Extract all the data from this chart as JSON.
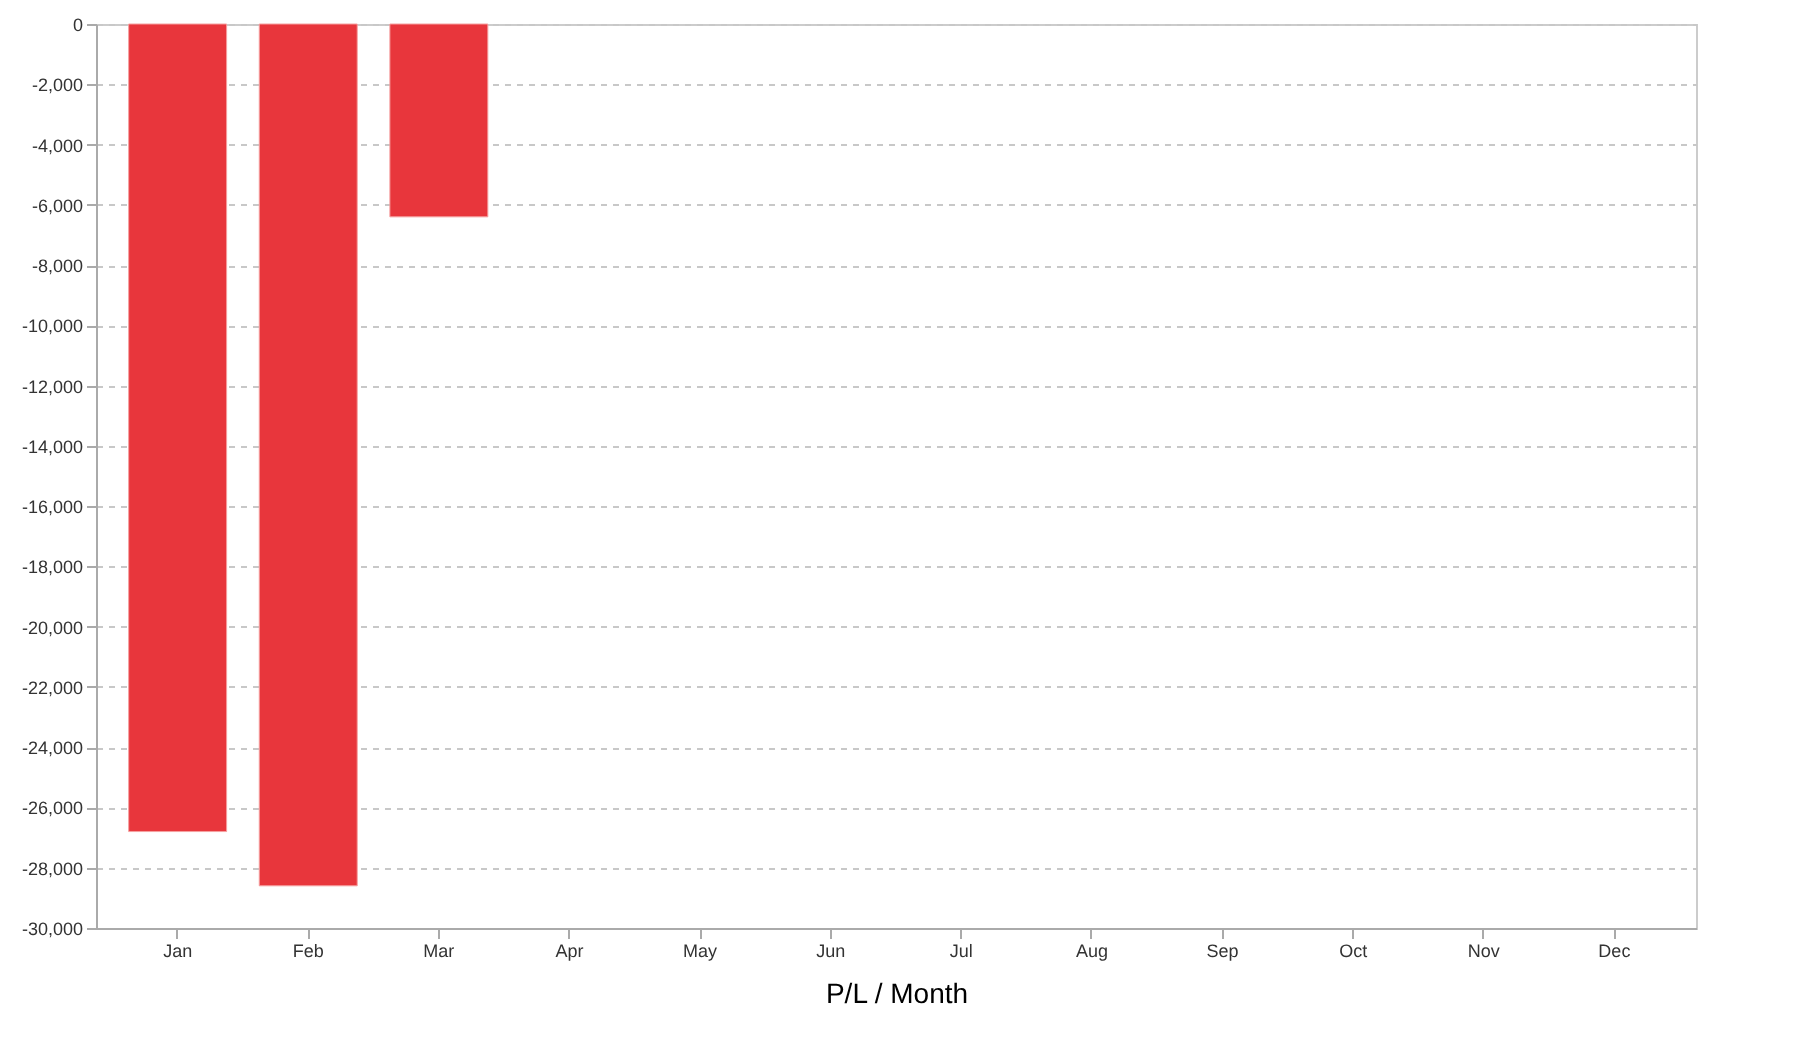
{
  "chart_data": {
    "type": "bar",
    "xlabel": "P/L / Month",
    "categories": [
      "Jan",
      "Feb",
      "Mar",
      "Apr",
      "May",
      "Jun",
      "Jul",
      "Aug",
      "Sep",
      "Oct",
      "Nov",
      "Dec"
    ],
    "values": [
      -26800,
      -28600,
      -6400,
      null,
      null,
      null,
      null,
      null,
      null,
      null,
      null,
      null
    ],
    "color": "#e8363c",
    "ylim": [
      -30000,
      0
    ],
    "yticks": [
      {
        "value": -30000,
        "label": "-30,000"
      },
      {
        "value": -28000,
        "label": "-28,000"
      },
      {
        "value": -26000,
        "label": "-26,000"
      },
      {
        "value": -24000,
        "label": "-24,000"
      },
      {
        "value": -22000,
        "label": "-22,000"
      },
      {
        "value": -20000,
        "label": "-20,000"
      },
      {
        "value": -18000,
        "label": "-18,000"
      },
      {
        "value": -16000,
        "label": "-16,000"
      },
      {
        "value": -14000,
        "label": "-14,000"
      },
      {
        "value": -12000,
        "label": "-12,000"
      },
      {
        "value": -10000,
        "label": "-10,000"
      },
      {
        "value": -8000,
        "label": "-8,000"
      },
      {
        "value": -6000,
        "label": "-6,000"
      },
      {
        "value": -4000,
        "label": "-4,000"
      },
      {
        "value": -2000,
        "label": "-2,000"
      },
      {
        "value": 0,
        "label": "0"
      }
    ],
    "grid": "y",
    "legend": false
  }
}
